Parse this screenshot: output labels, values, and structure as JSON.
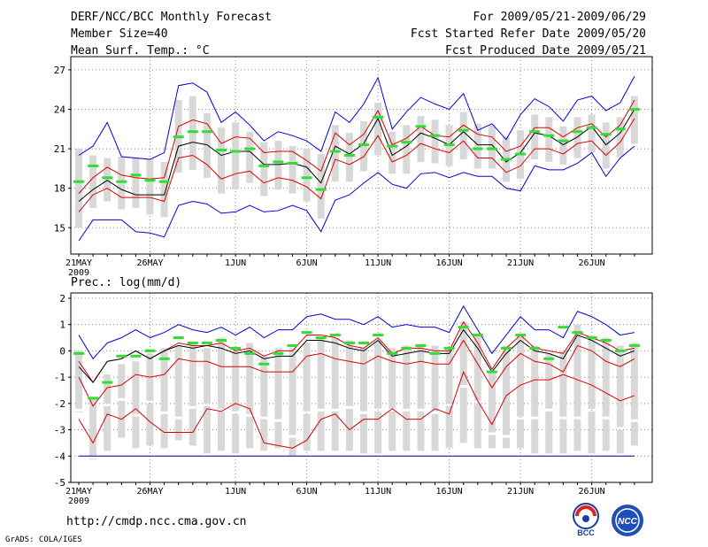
{
  "header": {
    "title": "DERF/NCC/BCC Monthly Forecast",
    "member_size": "Member Size=40",
    "variable": "Mean Surf. Temp.: °C",
    "period": "For 2009/05/21-2009/06/29",
    "started": "Fcst Started Refer Date 2009/05/20",
    "produced": "Fcst Produced Date 2009/05/21"
  },
  "footer": {
    "url": "http://cmdp.ncc.cma.gov.cn",
    "grads": "GrADS: COLA/IGES",
    "logo_bcc": "BCC",
    "logo_ncc": "NCC"
  },
  "colors": {
    "max": "#0000dd",
    "pct": "#dd0000",
    "mean": "#000000",
    "obs": "#33dd33",
    "box": "#d8d8d8",
    "grid": "#888888",
    "floor": "#0000aa"
  },
  "chart_data": [
    {
      "type": "line",
      "title": "Mean Surf. Temp.: °C",
      "x": [
        "21MAY",
        "22",
        "23",
        "24",
        "25",
        "26MAY",
        "27",
        "28",
        "29",
        "30",
        "31",
        "1JUN",
        "2",
        "3",
        "4",
        "5",
        "6JUN",
        "7",
        "8",
        "9",
        "10",
        "11JUN",
        "12",
        "13",
        "14",
        "15",
        "16JUN",
        "17",
        "18",
        "19",
        "20",
        "21JUN",
        "22",
        "23",
        "24",
        "25",
        "26JUN",
        "27",
        "28",
        "29"
      ],
      "xticks": [
        "21MAY",
        "26MAY",
        "1JUN",
        "6JUN",
        "11JUN",
        "16JUN",
        "21JUN",
        "26JUN"
      ],
      "year_label": "2009",
      "ylim": [
        13,
        28
      ],
      "yticks": [
        15,
        18,
        21,
        24,
        27
      ],
      "series": [
        {
          "name": "max",
          "values": [
            20.5,
            21.2,
            23.0,
            20.4,
            20.3,
            20.2,
            20.7,
            25.8,
            26.0,
            25.3,
            23.0,
            23.8,
            22.8,
            21.6,
            22.3,
            22.0,
            21.6,
            20.8,
            23.8,
            23.0,
            24.4,
            26.4,
            22.5,
            23.8,
            24.9,
            24.4,
            24.0,
            25.2,
            22.4,
            22.9,
            21.7,
            23.6,
            24.8,
            24.2,
            23.1,
            24.7,
            25.0,
            23.9,
            24.5,
            26.5
          ]
        },
        {
          "name": "p75",
          "values": [
            17.6,
            18.8,
            19.6,
            19.0,
            18.8,
            18.7,
            18.8,
            22.7,
            23.2,
            22.9,
            21.4,
            21.9,
            21.8,
            20.7,
            20.8,
            20.8,
            20.1,
            19.3,
            22.2,
            21.3,
            22.1,
            23.9,
            21.3,
            21.8,
            22.7,
            22.0,
            21.9,
            22.8,
            22.1,
            21.9,
            20.8,
            21.2,
            22.6,
            22.6,
            21.9,
            22.6,
            22.9,
            21.9,
            22.8,
            24.7
          ]
        },
        {
          "name": "mean",
          "values": [
            17.0,
            17.9,
            18.6,
            17.9,
            17.5,
            17.5,
            17.5,
            21.2,
            21.5,
            21.3,
            20.5,
            20.8,
            20.8,
            19.8,
            19.8,
            19.9,
            19.6,
            18.4,
            21.2,
            20.6,
            21.4,
            23.3,
            20.5,
            21.2,
            22.2,
            21.8,
            21.3,
            22.3,
            21.3,
            21.3,
            20.0,
            20.7,
            22.2,
            22.0,
            21.3,
            21.9,
            22.7,
            21.3,
            22.2,
            24.0
          ]
        },
        {
          "name": "p25",
          "values": [
            16.2,
            17.5,
            18.0,
            17.3,
            17.3,
            17.3,
            17.0,
            20.3,
            20.5,
            19.8,
            18.7,
            19.1,
            19.3,
            18.4,
            18.8,
            18.6,
            18.1,
            17.2,
            20.2,
            19.8,
            20.4,
            22.0,
            20.0,
            20.5,
            21.4,
            21.0,
            20.7,
            21.6,
            20.3,
            20.3,
            19.2,
            19.7,
            21.0,
            21.0,
            20.6,
            21.4,
            21.6,
            20.5,
            21.5,
            23.3
          ]
        },
        {
          "name": "min",
          "values": [
            14.0,
            15.6,
            15.6,
            15.6,
            14.7,
            14.6,
            14.3,
            16.7,
            17.0,
            16.8,
            16.1,
            16.2,
            16.7,
            16.2,
            16.3,
            16.7,
            16.3,
            14.7,
            17.1,
            17.5,
            18.4,
            19.2,
            18.3,
            18.0,
            19.1,
            19.2,
            18.8,
            19.2,
            18.9,
            18.9,
            18.0,
            17.8,
            19.7,
            19.4,
            19.4,
            19.9,
            20.7,
            18.9,
            20.3,
            21.2
          ]
        },
        {
          "name": "obs",
          "values": [
            18.5,
            19.7,
            18.8,
            18.5,
            19.0,
            18.6,
            18.5,
            21.9,
            22.3,
            22.3,
            20.9,
            20.8,
            21.0,
            19.7,
            20.0,
            19.9,
            18.8,
            17.9,
            20.8,
            20.5,
            21.3,
            23.4,
            21.2,
            21.5,
            22.7,
            22.0,
            21.3,
            22.4,
            21.0,
            21.0,
            20.2,
            20.6,
            22.3,
            22.0,
            21.6,
            22.3,
            22.6,
            22.1,
            22.5,
            24.0
          ]
        },
        {
          "name": "box_high",
          "values": [
            21.0,
            20.5,
            20.3,
            20.4,
            20.3,
            20.2,
            20.0,
            24.7,
            25.0,
            23.7,
            22.6,
            23.0,
            22.3,
            21.5,
            21.6,
            21.2,
            21.0,
            20.6,
            22.8,
            22.2,
            23.1,
            24.5,
            22.3,
            22.8,
            23.5,
            23.2,
            22.8,
            23.8,
            22.9,
            22.8,
            21.9,
            22.4,
            23.6,
            23.4,
            22.7,
            23.4,
            23.6,
            23.0,
            23.4,
            25.0
          ]
        },
        {
          "name": "box_low",
          "values": [
            15.0,
            16.5,
            17.0,
            16.4,
            16.5,
            16.0,
            15.8,
            19.2,
            19.4,
            18.8,
            17.6,
            17.9,
            18.4,
            17.4,
            17.9,
            17.6,
            17.0,
            15.7,
            18.5,
            18.5,
            19.3,
            20.5,
            19.1,
            19.1,
            20.0,
            19.9,
            19.7,
            20.2,
            19.5,
            19.5,
            18.5,
            18.7,
            20.2,
            20.0,
            19.8,
            20.3,
            20.7,
            19.5,
            20.4,
            21.4
          ]
        }
      ]
    },
    {
      "type": "line",
      "title": "Prec.: log(mm/d)",
      "x": [
        "21MAY",
        "22",
        "23",
        "24",
        "25",
        "26MAY",
        "27",
        "28",
        "29",
        "30",
        "31",
        "1JUN",
        "2",
        "3",
        "4",
        "5",
        "6JUN",
        "7",
        "8",
        "9",
        "10",
        "11JUN",
        "12",
        "13",
        "14",
        "15",
        "16JUN",
        "17",
        "18",
        "19",
        "20",
        "21JUN",
        "22",
        "23",
        "24",
        "25",
        "26JUN",
        "27",
        "28",
        "29"
      ],
      "xticks": [
        "21MAY",
        "26MAY",
        "1JUN",
        "6JUN",
        "11JUN",
        "16JUN",
        "21JUN",
        "26JUN"
      ],
      "year_label": "2009",
      "ylim": [
        -5,
        2.2
      ],
      "yticks": [
        -5,
        -4,
        -3,
        -2,
        -1,
        0,
        1,
        2
      ],
      "floor_value": -4,
      "series": [
        {
          "name": "max",
          "values": [
            0.6,
            -0.3,
            0.3,
            0.5,
            0.8,
            0.5,
            0.7,
            1.0,
            0.8,
            0.7,
            0.9,
            0.6,
            0.9,
            0.5,
            0.8,
            0.8,
            1.3,
            1.4,
            1.2,
            1.2,
            1.0,
            1.3,
            0.9,
            1.0,
            0.9,
            0.9,
            0.7,
            1.7,
            0.8,
            -0.1,
            0.6,
            1.3,
            0.8,
            0.8,
            0.5,
            1.5,
            1.3,
            1.0,
            0.6,
            0.7
          ]
        },
        {
          "name": "p75",
          "values": [
            -0.4,
            -1.2,
            -0.4,
            -0.3,
            0.0,
            -0.3,
            0.0,
            0.3,
            0.2,
            0.2,
            0.3,
            0.0,
            0.1,
            -0.2,
            0.0,
            0.0,
            0.6,
            0.6,
            0.5,
            0.2,
            0.1,
            0.5,
            -0.1,
            0.1,
            0.1,
            0.0,
            0.0,
            1.1,
            0.3,
            -0.7,
            0.1,
            0.6,
            0.1,
            0.0,
            -0.1,
            0.7,
            0.5,
            0.3,
            0.0,
            0.1
          ]
        },
        {
          "name": "mean",
          "values": [
            -0.6,
            -1.2,
            -0.4,
            -0.3,
            0.0,
            -0.3,
            0.0,
            0.2,
            0.1,
            0.2,
            0.1,
            -0.1,
            0.0,
            -0.3,
            -0.2,
            -0.2,
            0.4,
            0.4,
            0.3,
            0.1,
            0.0,
            0.4,
            -0.2,
            -0.1,
            0.0,
            -0.1,
            -0.1,
            0.8,
            0.1,
            -0.8,
            -0.1,
            0.4,
            0.0,
            -0.1,
            -0.3,
            0.6,
            0.4,
            0.1,
            -0.2,
            0.0
          ]
        },
        {
          "name": "p25",
          "values": [
            -1.0,
            -2.1,
            -1.4,
            -1.3,
            -0.9,
            -1.0,
            -0.9,
            -0.3,
            -0.4,
            -0.4,
            -0.6,
            -0.6,
            -0.6,
            -0.8,
            -0.8,
            -0.8,
            -0.2,
            -0.1,
            -0.3,
            -0.4,
            -0.5,
            -0.2,
            -0.4,
            -0.5,
            -0.4,
            -0.5,
            -0.5,
            0.4,
            -0.5,
            -1.4,
            -0.6,
            -0.1,
            -0.4,
            -0.5,
            -0.8,
            0.2,
            0.0,
            -0.4,
            -0.6,
            -0.3
          ]
        },
        {
          "name": "p10",
          "values": [
            -2.6,
            -3.5,
            -2.4,
            -2.6,
            -2.2,
            -2.7,
            -3.1,
            -3.1,
            -3.1,
            -2.2,
            -2.3,
            -2.0,
            -2.2,
            -3.5,
            -3.6,
            -3.7,
            -3.4,
            -2.6,
            -2.4,
            -3.0,
            -2.6,
            -2.6,
            -2.2,
            -2.6,
            -2.6,
            -2.2,
            -2.4,
            -0.8,
            -1.9,
            -2.8,
            -1.7,
            -1.3,
            -1.1,
            -1.1,
            -0.9,
            -1.1,
            -1.3,
            -1.6,
            -1.9,
            -1.7
          ]
        },
        {
          "name": "obs",
          "values": [
            -0.1,
            -1.8,
            -1.2,
            -0.2,
            -0.2,
            0.0,
            -0.3,
            0.5,
            0.3,
            0.3,
            0.4,
            0.1,
            -0.1,
            -0.5,
            -0.1,
            0.2,
            0.7,
            0.5,
            0.6,
            0.3,
            0.3,
            0.6,
            -0.1,
            0.1,
            0.2,
            -0.1,
            0.1,
            0.9,
            0.6,
            -0.8,
            0.1,
            0.6,
            0.1,
            -0.3,
            0.9,
            0.7,
            0.5,
            0.4,
            0.0,
            0.2
          ]
        },
        {
          "name": "box_high",
          "values": [
            0.0,
            -1.8,
            -0.9,
            -0.5,
            -0.4,
            -0.1,
            0.1,
            0.2,
            0.3,
            0.1,
            0.5,
            0.0,
            0.3,
            -0.2,
            0.1,
            0.1,
            0.3,
            0.5,
            0.5,
            0.4,
            0.1,
            0.4,
            0.1,
            0.2,
            0.2,
            0.2,
            0.1,
            1.1,
            0.6,
            -0.8,
            0.2,
            0.6,
            0.2,
            -0.1,
            0.0,
            1.0,
            0.6,
            0.5,
            0.2,
            0.3
          ]
        },
        {
          "name": "box_low",
          "values": [
            -2.2,
            -4.0,
            -2.0,
            -1.8,
            -2.4,
            -1.9,
            -2.3,
            -2.5,
            -2.1,
            -2.0,
            -2.2,
            -2.3,
            -2.4,
            -2.5,
            -2.6,
            -3.2,
            -2.3,
            -2.2,
            -2.2,
            -2.1,
            -2.3,
            -2.2,
            -2.2,
            -2.2,
            -2.2,
            -2.3,
            -2.0,
            -1.3,
            -1.9,
            -3.1,
            -3.2,
            -2.5,
            -2.5,
            -2.2,
            -2.5,
            -2.5,
            -2.2,
            -2.5,
            -2.9,
            -2.6
          ]
        },
        {
          "name": "box_bottom",
          "values": [
            -2.2,
            -4.0,
            -3.8,
            -3.3,
            -3.7,
            -3.6,
            -3.7,
            -3.4,
            -3.6,
            -3.9,
            -3.8,
            -3.9,
            -3.7,
            -3.8,
            -3.7,
            -4.0,
            -3.8,
            -3.8,
            -3.8,
            -3.8,
            -3.9,
            -3.9,
            -3.8,
            -3.8,
            -3.8,
            -3.8,
            -3.7,
            -3.5,
            -3.7,
            -3.7,
            -3.7,
            -3.7,
            -3.9,
            -3.9,
            -3.9,
            -3.8,
            -3.9,
            -3.8,
            -3.9,
            -3.6
          ]
        }
      ]
    }
  ]
}
